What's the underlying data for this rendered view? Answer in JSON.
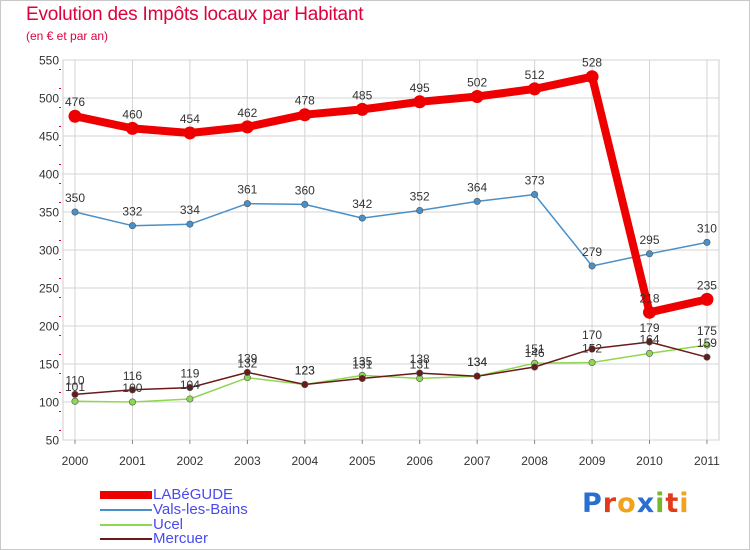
{
  "chart_data": {
    "type": "line",
    "title": "Evolution des Impôts locaux par Habitant",
    "subtitle": "(en € et par an)",
    "categories": [
      "2000",
      "2001",
      "2002",
      "2003",
      "2004",
      "2005",
      "2006",
      "2007",
      "2008",
      "2009",
      "2010",
      "2011"
    ],
    "ylim": [
      50,
      550
    ],
    "yticks": [
      50,
      100,
      150,
      200,
      250,
      300,
      350,
      400,
      450,
      500,
      550
    ],
    "grid": true,
    "series": [
      {
        "name": "LABéGUDE",
        "color": "#ee0000",
        "values": [
          476,
          460,
          454,
          462,
          478,
          485,
          495,
          502,
          512,
          528,
          218,
          235
        ],
        "labels": [
          "476",
          "460",
          "454",
          "462",
          "478",
          "485",
          "495",
          "502",
          "512",
          "528",
          "218",
          "235"
        ]
      },
      {
        "name": "Vals-les-Bains",
        "color": "#4a90c8",
        "values": [
          350,
          332,
          334,
          361,
          360,
          342,
          352,
          364,
          373,
          279,
          295,
          310
        ],
        "labels": [
          "350",
          "332",
          "334",
          "361",
          "360",
          "342",
          "352",
          "364",
          "373",
          "279",
          "295",
          "310"
        ]
      },
      {
        "name": "Ucel",
        "color": "#8ed850",
        "values": [
          101,
          100,
          104,
          132,
          123,
          135,
          131,
          134,
          151,
          152,
          164,
          175
        ],
        "labels": [
          "101",
          "100",
          "104",
          "132",
          "123",
          "135",
          "131",
          "134",
          "151",
          "152",
          "164",
          "175"
        ]
      },
      {
        "name": "Mercuer",
        "color": "#6a1a1a",
        "values": [
          110,
          116,
          119,
          139,
          123,
          131,
          138,
          134,
          146,
          170,
          179,
          159
        ],
        "labels": [
          "110",
          "116",
          "119",
          "139",
          "123",
          "131",
          "138",
          "134",
          "146",
          "170",
          "179",
          "159"
        ]
      }
    ]
  },
  "logo": {
    "letters": [
      {
        "ch": "P",
        "color": "#2a6fd0"
      },
      {
        "ch": "r",
        "color": "#e23a1c"
      },
      {
        "ch": "o",
        "color": "#f2a21c"
      },
      {
        "ch": "x",
        "color": "#2a6fd0"
      },
      {
        "ch": "i",
        "color": "#77b82a"
      },
      {
        "ch": "t",
        "color": "#e23a1c"
      },
      {
        "ch": "i",
        "color": "#f2a21c"
      }
    ]
  }
}
